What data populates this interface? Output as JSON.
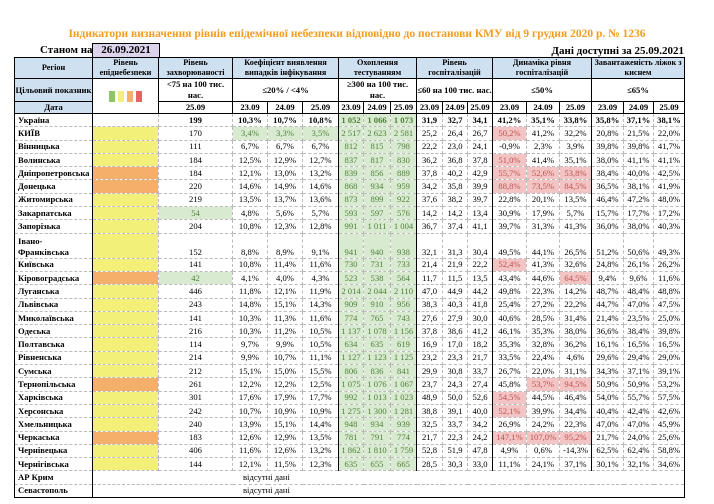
{
  "title": "Індикатори визначення рівнів епідемічної небезпеки відповідно до постанови КМУ від 9 грудня 2020 р. № 1236",
  "as_of_label": "Станом на",
  "as_of_date": "26.09.2021",
  "available_label": "Дані доступні за  25.09.2021",
  "headers": {
    "region": "Регіон",
    "level": "Рівень епіднебезпеки",
    "incidence": "Рівень захворюваності",
    "coef": "Коефіцієнт виявлення випадків інфікування",
    "testing": "Охоплення тестуванням",
    "hosp": "Рівень госпіталізацій",
    "dyn": "Динаміка рівня госпіталізацій",
    "beds": "Завантаженість ліжок з киснем"
  },
  "targets": {
    "label": "Цільовий показник",
    "incidence": "<75 на 100 тис. нас.",
    "coef": "≤20% / <4%",
    "testing": "≥300 на 100 тис. нас.",
    "hosp": "≤60 на 100 тис. нас.",
    "dyn": "≤50%",
    "beds": "≤65%"
  },
  "legend_colors": [
    "#8cc56a",
    "#f3f07a",
    "#f4b06a",
    "#e06666"
  ],
  "date_label": "Дата",
  "dates": {
    "inc": "25.09",
    "d1": "23.09",
    "d2": "24.09",
    "d3": "25.09"
  },
  "no_data": "відсутні дані",
  "rows": [
    {
      "name": "Україна",
      "level": "",
      "inc": "199",
      "coef": [
        "10,3%",
        "10,7%",
        "10,8%"
      ],
      "test": [
        "1 052",
        "1 066",
        "1 073"
      ],
      "hosp": [
        "31,9",
        "32,7",
        "34,1"
      ],
      "dyn": [
        "41,2%",
        "35,1%",
        "33,8%"
      ],
      "beds": [
        "35,8%",
        "37,1%",
        "38,1%"
      ]
    },
    {
      "name": "КИЇВ",
      "level": "yellow",
      "inc": "170",
      "coef": [
        "3,4%",
        "3,3%",
        "3,5%"
      ],
      "coef_green": true,
      "test": [
        "2 517",
        "2 623",
        "2 581"
      ],
      "hosp": [
        "25,2",
        "26,4",
        "26,7"
      ],
      "dyn": [
        "50,2%",
        "41,2%",
        "32,2%"
      ],
      "dyn_red": [
        1,
        0,
        0
      ],
      "beds": [
        "20,8%",
        "21,5%",
        "22,0%"
      ]
    },
    {
      "name": "Вінницька",
      "level": "yellow",
      "inc": "111",
      "coef": [
        "6,7%",
        "6,7%",
        "6,7%"
      ],
      "test": [
        "812",
        "815",
        "798"
      ],
      "hosp": [
        "22,2",
        "23,0",
        "24,1"
      ],
      "dyn": [
        "-0,9%",
        "2,3%",
        "3,9%"
      ],
      "beds": [
        "39,8%",
        "39,8%",
        "41,7%"
      ]
    },
    {
      "name": "Волинська",
      "level": "yellow",
      "inc": "184",
      "coef": [
        "12,5%",
        "12,9%",
        "12,7%"
      ],
      "test": [
        "837",
        "817",
        "830"
      ],
      "hosp": [
        "36,2",
        "36,8",
        "37,8"
      ],
      "dyn": [
        "51,0%",
        "41,4%",
        "35,1%"
      ],
      "dyn_red": [
        1,
        0,
        0
      ],
      "beds": [
        "38,0%",
        "41,1%",
        "41,1%"
      ]
    },
    {
      "name": "Дніпропетровська",
      "level": "orange",
      "inc": "184",
      "coef": [
        "12,1%",
        "13,0%",
        "13,2%"
      ],
      "test": [
        "839",
        "856",
        "889"
      ],
      "hosp": [
        "37,8",
        "40,2",
        "42,9"
      ],
      "dyn": [
        "55,7%",
        "52,6%",
        "53,8%"
      ],
      "dyn_red": [
        1,
        1,
        1
      ],
      "beds": [
        "38,4%",
        "40,0%",
        "42,5%"
      ]
    },
    {
      "name": "Донецька",
      "level": "orange",
      "inc": "220",
      "coef": [
        "14,6%",
        "14,9%",
        "14,6%"
      ],
      "test": [
        "868",
        "934",
        "959"
      ],
      "hosp": [
        "34,2",
        "35,8",
        "39,9"
      ],
      "dyn": [
        "88,8%",
        "73,5%",
        "84,5%"
      ],
      "dyn_red": [
        1,
        1,
        1
      ],
      "beds": [
        "36,5%",
        "38,1%",
        "41,9%"
      ]
    },
    {
      "name": "Житомирська",
      "level": "yellow",
      "inc": "219",
      "coef": [
        "13,5%",
        "13,7%",
        "13,6%"
      ],
      "test": [
        "873",
        "899",
        "922"
      ],
      "hosp": [
        "37,6",
        "38,2",
        "39,7"
      ],
      "dyn": [
        "22,8%",
        "20,1%",
        "13,5%"
      ],
      "beds": [
        "46,4%",
        "47,2%",
        "48,0%"
      ]
    },
    {
      "name": "Закарпатська",
      "level": "yellow",
      "inc": "54",
      "inc_green": true,
      "coef": [
        "4,8%",
        "5,6%",
        "5,7%"
      ],
      "test": [
        "593",
        "597",
        "576"
      ],
      "hosp": [
        "14,2",
        "14,2",
        "13,4"
      ],
      "dyn": [
        "30,9%",
        "17,9%",
        "5,7%"
      ],
      "beds": [
        "15,7%",
        "17,7%",
        "17,2%"
      ]
    },
    {
      "name": "Запорізька",
      "level": "yellow",
      "inc": "204",
      "coef": [
        "10,8%",
        "12,3%",
        "12,8%"
      ],
      "test": [
        "991",
        "1 011",
        "1 004"
      ],
      "hosp": [
        "36,7",
        "37,4",
        "41,1"
      ],
      "dyn": [
        "39,7%",
        "31,3%",
        "41,3%"
      ],
      "beds": [
        "36,0%",
        "38,0%",
        "40,3%"
      ]
    },
    {
      "name": "Івано-Франківська",
      "tall": true,
      "level": "yellow",
      "inc": "152",
      "coef": [
        "8,8%",
        "8,9%",
        "9,1%"
      ],
      "test": [
        "941",
        "940",
        "938"
      ],
      "hosp": [
        "32,1",
        "31,3",
        "30,4"
      ],
      "dyn": [
        "49,5%",
        "44,1%",
        "26,5%"
      ],
      "beds": [
        "51,2%",
        "50,6%",
        "49,3%"
      ]
    },
    {
      "name": "Київська",
      "level": "yellow",
      "inc": "141",
      "coef": [
        "10,8%",
        "11,4%",
        "11,6%"
      ],
      "test": [
        "730",
        "731",
        "733"
      ],
      "hosp": [
        "21,4",
        "21,9",
        "22,2"
      ],
      "dyn": [
        "52,4%",
        "41,3%",
        "32,6%"
      ],
      "dyn_red": [
        1,
        0,
        0
      ],
      "beds": [
        "24,8%",
        "26,1%",
        "26,2%"
      ]
    },
    {
      "name": "Кіровоградська",
      "level": "orange",
      "inc": "42",
      "inc_green": true,
      "coef": [
        "4,1%",
        "4,0%",
        "4,3%"
      ],
      "test": [
        "523",
        "538",
        "564"
      ],
      "hosp": [
        "11,7",
        "11,5",
        "13,5"
      ],
      "dyn": [
        "43,4%",
        "44,6%",
        "64,5%"
      ],
      "dyn_red": [
        0,
        0,
        1
      ],
      "beds": [
        "9,4%",
        "9,6%",
        "11,6%"
      ]
    },
    {
      "name": "Луганська",
      "level": "yellow",
      "inc": "446",
      "coef": [
        "11,8%",
        "12,1%",
        "11,9%"
      ],
      "test": [
        "2 014",
        "2 044",
        "2 110"
      ],
      "hosp": [
        "47,0",
        "44,9",
        "44,2"
      ],
      "dyn": [
        "49,8%",
        "22,3%",
        "14,2%"
      ],
      "beds": [
        "48,7%",
        "48,4%",
        "48,8%"
      ]
    },
    {
      "name": "Львівська",
      "level": "yellow",
      "inc": "243",
      "coef": [
        "14,8%",
        "15,1%",
        "14,3%"
      ],
      "test": [
        "909",
        "910",
        "956"
      ],
      "hosp": [
        "38,3",
        "40,3",
        "41,8"
      ],
      "dyn": [
        "25,4%",
        "27,2%",
        "22,2%"
      ],
      "beds": [
        "44,7%",
        "47,0%",
        "47,5%"
      ]
    },
    {
      "name": "Миколаївська",
      "level": "yellow",
      "inc": "141",
      "coef": [
        "10,3%",
        "11,3%",
        "11,6%"
      ],
      "test": [
        "774",
        "765",
        "743"
      ],
      "hosp": [
        "27,6",
        "27,9",
        "30,0"
      ],
      "dyn": [
        "40,6%",
        "28,5%",
        "31,4%"
      ],
      "beds": [
        "21,4%",
        "23,5%",
        "25,0%"
      ]
    },
    {
      "name": "Одеська",
      "level": "yellow",
      "inc": "216",
      "coef": [
        "10,3%",
        "11,2%",
        "10,5%"
      ],
      "test": [
        "1 137",
        "1 078",
        "1 156"
      ],
      "hosp": [
        "37,8",
        "38,6",
        "41,2"
      ],
      "dyn": [
        "46,1%",
        "35,3%",
        "38,0%"
      ],
      "beds": [
        "36,6%",
        "38,4%",
        "39,8%"
      ]
    },
    {
      "name": "Полтавська",
      "level": "yellow",
      "inc": "114",
      "coef": [
        "9,7%",
        "9,9%",
        "10,5%"
      ],
      "test": [
        "634",
        "635",
        "619"
      ],
      "hosp": [
        "16,9",
        "17,0",
        "18,2"
      ],
      "dyn": [
        "35,3%",
        "32,8%",
        "36,2%"
      ],
      "beds": [
        "16,1%",
        "16,5%",
        "16,5%"
      ]
    },
    {
      "name": "Рівненська",
      "level": "yellow",
      "inc": "214",
      "coef": [
        "9,9%",
        "10,7%",
        "11,1%"
      ],
      "test": [
        "1 127",
        "1 123",
        "1 125"
      ],
      "hosp": [
        "23,2",
        "23,3",
        "21,7"
      ],
      "dyn": [
        "33,5%",
        "22,4%",
        "4,6%"
      ],
      "beds": [
        "29,6%",
        "29,4%",
        "29,0%"
      ]
    },
    {
      "name": "Сумська",
      "level": "yellow",
      "inc": "212",
      "coef": [
        "15,1%",
        "15,0%",
        "15,5%"
      ],
      "test": [
        "806",
        "836",
        "841"
      ],
      "hosp": [
        "29,9",
        "30,8",
        "33,7"
      ],
      "dyn": [
        "26,7%",
        "22,0%",
        "31,1%"
      ],
      "beds": [
        "34,3%",
        "37,1%",
        "39,1%"
      ]
    },
    {
      "name": "Тернопільська",
      "level": "orange",
      "inc": "261",
      "coef": [
        "12,2%",
        "12,2%",
        "12,5%"
      ],
      "test": [
        "1 075",
        "1 076",
        "1 067"
      ],
      "hosp": [
        "23,7",
        "24,3",
        "27,4"
      ],
      "dyn": [
        "45,8%",
        "53,7%",
        "94,5%"
      ],
      "dyn_red": [
        0,
        1,
        1
      ],
      "beds": [
        "50,9%",
        "50,9%",
        "53,2%"
      ]
    },
    {
      "name": "Харківська",
      "level": "yellow",
      "inc": "301",
      "coef": [
        "17,6%",
        "17,9%",
        "17,7%"
      ],
      "test": [
        "992",
        "1 013",
        "1 023"
      ],
      "hosp": [
        "48,9",
        "50,0",
        "52,6"
      ],
      "dyn": [
        "54,5%",
        "44,5%",
        "46,4%"
      ],
      "dyn_red": [
        1,
        0,
        0
      ],
      "beds": [
        "54,0%",
        "55,7%",
        "57,5%"
      ]
    },
    {
      "name": "Херсонська",
      "level": "yellow",
      "inc": "242",
      "coef": [
        "10,7%",
        "10,9%",
        "10,9%"
      ],
      "test": [
        "1 275",
        "1 300",
        "1 281"
      ],
      "hosp": [
        "38,8",
        "39,1",
        "40,0"
      ],
      "dyn": [
        "52,1%",
        "39,9%",
        "34,4%"
      ],
      "dyn_red": [
        1,
        0,
        0
      ],
      "beds": [
        "40,4%",
        "42,4%",
        "42,6%"
      ]
    },
    {
      "name": "Хмельницька",
      "level": "yellow",
      "inc": "240",
      "coef": [
        "13,9%",
        "15,1%",
        "14,4%"
      ],
      "test": [
        "948",
        "934",
        "939"
      ],
      "hosp": [
        "32,5",
        "33,7",
        "34,2"
      ],
      "dyn": [
        "26,9%",
        "24,2%",
        "22,3%"
      ],
      "beds": [
        "47,0%",
        "47,0%",
        "45,9%"
      ]
    },
    {
      "name": "Черкаська",
      "level": "orange",
      "inc": "183",
      "coef": [
        "12,6%",
        "12,9%",
        "13,5%"
      ],
      "test": [
        "781",
        "791",
        "774"
      ],
      "hosp": [
        "21,7",
        "22,3",
        "24,2"
      ],
      "dyn": [
        "147,1%",
        "107,0%",
        "95,2%"
      ],
      "dyn_red": [
        1,
        1,
        1
      ],
      "beds": [
        "21,7%",
        "24,0%",
        "25,6%"
      ]
    },
    {
      "name": "Чернівецька",
      "level": "yellow",
      "inc": "406",
      "coef": [
        "11,6%",
        "12,6%",
        "13,2%"
      ],
      "test": [
        "1 862",
        "1 810",
        "1 759"
      ],
      "hosp": [
        "52,8",
        "51,9",
        "47,8"
      ],
      "dyn": [
        "4,9%",
        "0,6%",
        "-14,3%"
      ],
      "beds": [
        "62,5%",
        "62,4%",
        "58,8%"
      ]
    },
    {
      "name": "Чернігівська",
      "level": "yellow",
      "inc": "144",
      "coef": [
        "12,1%",
        "11,5%",
        "12,3%"
      ],
      "test": [
        "635",
        "655",
        "665"
      ],
      "hosp": [
        "28,5",
        "30,3",
        "33,0"
      ],
      "dyn": [
        "11,1%",
        "24,1%",
        "37,1%"
      ],
      "beds": [
        "30,1%",
        "32,1%",
        "34,6%"
      ]
    }
  ],
  "nodata_rows": [
    "АР Крим",
    "Севастополь"
  ]
}
